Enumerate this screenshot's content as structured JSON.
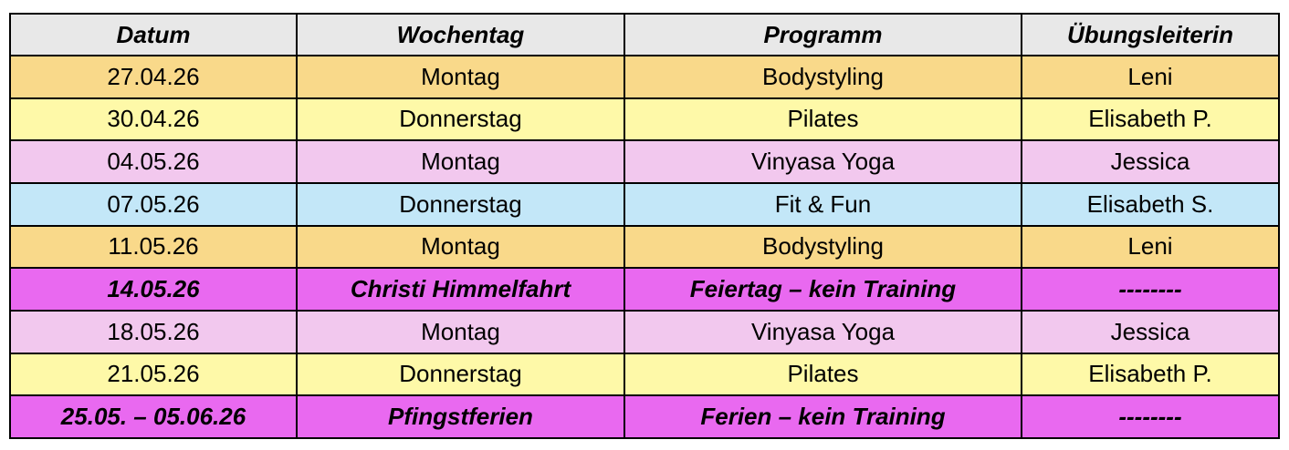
{
  "table": {
    "header": [
      "Datum",
      "Wochentag",
      "Programm",
      "Übungsleiterin"
    ],
    "rows": [
      [
        "27.04.26",
        "Montag",
        "Bodystyling",
        "Leni"
      ],
      [
        "30.04.26",
        "Donnerstag",
        "Pilates",
        "Elisabeth P."
      ],
      [
        "04.05.26",
        "Montag",
        "Vinyasa Yoga",
        "Jessica"
      ],
      [
        "07.05.26",
        "Donnerstag",
        "Fit & Fun",
        "Elisabeth S."
      ],
      [
        "11.05.26",
        "Montag",
        "Bodystyling",
        "Leni"
      ],
      [
        "14.05.26",
        "Christi Himmelfahrt",
        "Feiertag – kein Training",
        "--------"
      ],
      [
        "18.05.26",
        "Montag",
        "Vinyasa Yoga",
        "Jessica"
      ],
      [
        "21.05.26",
        "Donnerstag",
        "Pilates",
        "Elisabeth P."
      ],
      [
        "25.05. – 05.06.26",
        "Pfingstferien",
        "Ferien – kein Training",
        "--------"
      ]
    ]
  }
}
